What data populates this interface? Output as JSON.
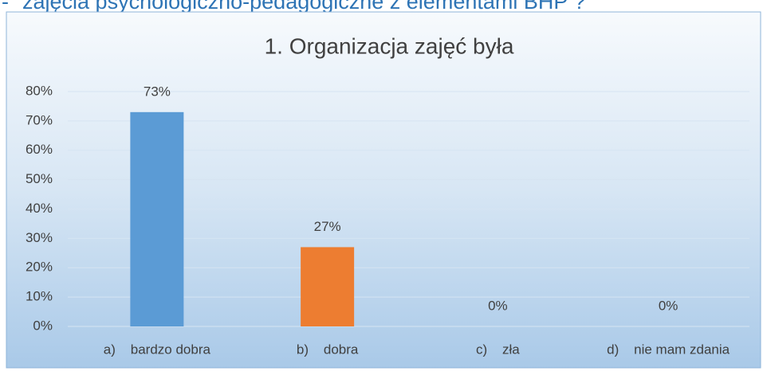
{
  "heading": "zajęcia psychologiczno-pedagogiczne z elementami BHP ?",
  "chart_data": {
    "type": "bar",
    "title": "1. Organizacja zajęć była",
    "categories": [
      "a)    bardzo dobra",
      "b)    dobra",
      "c)    zła",
      "d)    nie mam zdania"
    ],
    "values": [
      73,
      27,
      0,
      0
    ],
    "value_labels": [
      "73%",
      "27%",
      "0%",
      "0%"
    ],
    "colors": [
      "#5b9bd5",
      "#ed7d31",
      "#a5a5a5",
      "#ffc000"
    ],
    "ylim": [
      0,
      80
    ],
    "yticks": [
      {
        "value": 0,
        "label": "0%"
      },
      {
        "value": 10,
        "label": "10%"
      },
      {
        "value": 20,
        "label": "20%"
      },
      {
        "value": 30,
        "label": "30%"
      },
      {
        "value": 40,
        "label": "40%"
      },
      {
        "value": 50,
        "label": "50%"
      },
      {
        "value": 60,
        "label": "60%"
      },
      {
        "value": 70,
        "label": "70%"
      },
      {
        "value": 80,
        "label": "80%"
      }
    ],
    "grid": true
  }
}
